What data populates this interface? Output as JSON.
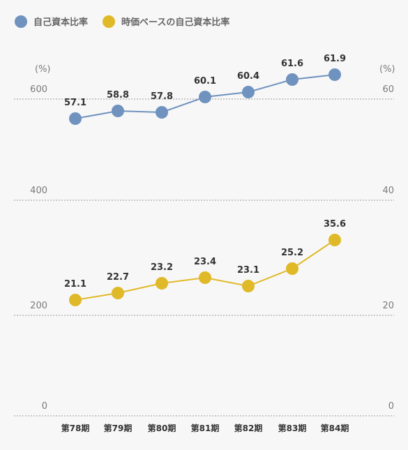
{
  "chart_data": {
    "type": "line",
    "categories": [
      "第78期",
      "第79期",
      "第80期",
      "第81期",
      "第82期",
      "第83期",
      "第84期"
    ],
    "series": [
      {
        "name": "自己資本比率",
        "values": [
          57.1,
          58.8,
          57.8,
          60.1,
          60.4,
          61.6,
          61.9
        ],
        "color": "#6f92bf",
        "axis": "upper"
      },
      {
        "name": "時価ベースの自己資本比率",
        "values": [
          21.1,
          22.7,
          23.2,
          23.4,
          23.1,
          25.2,
          35.6
        ],
        "color": "#e0b929",
        "axis": "lower"
      }
    ],
    "left_axis": {
      "unit": "(%)",
      "ticks": [
        "600",
        "400",
        "200",
        "0"
      ]
    },
    "right_axis": {
      "unit": "(%)",
      "ticks": [
        "60",
        "40",
        "20",
        "0"
      ]
    },
    "grid": true,
    "legend_position": "top-left"
  }
}
